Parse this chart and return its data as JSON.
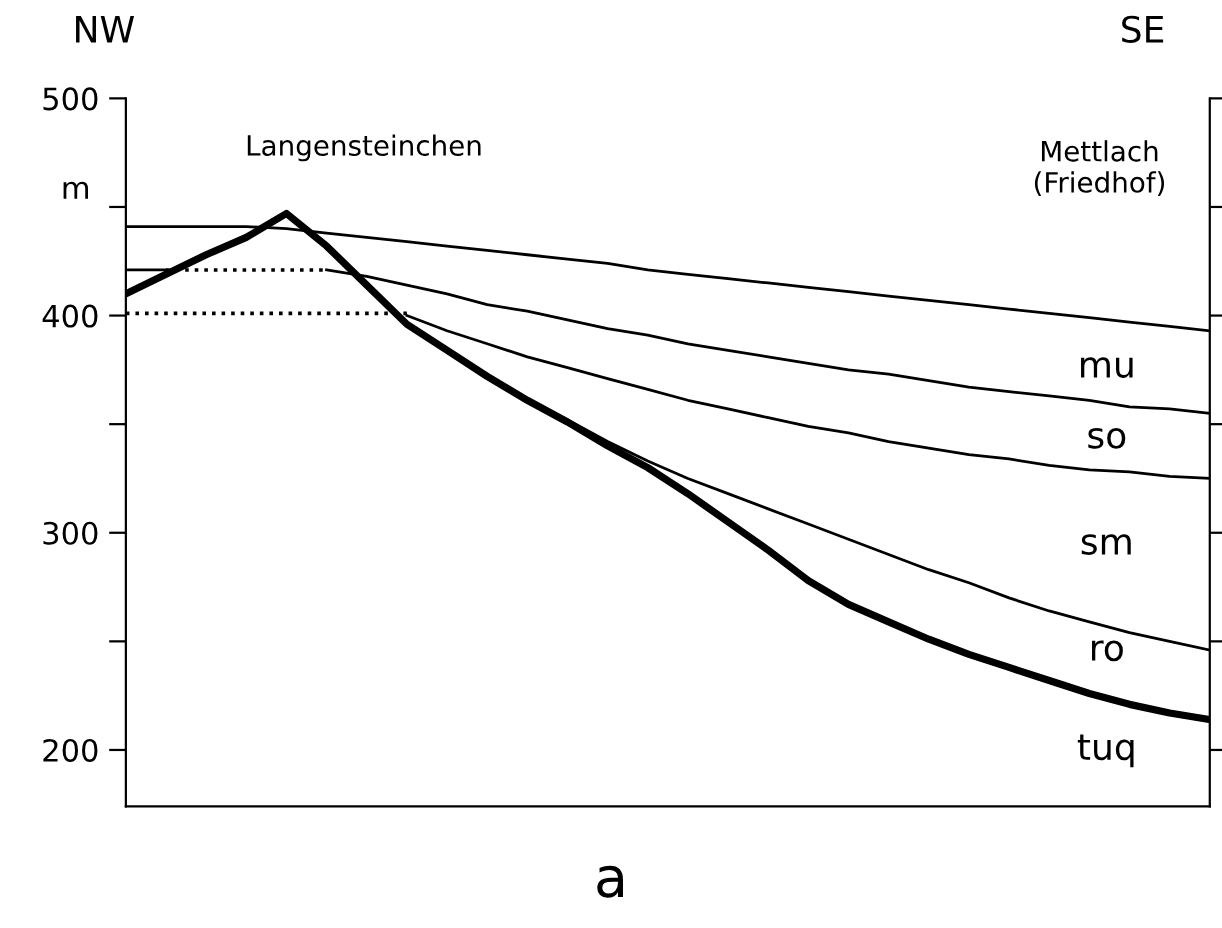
{
  "chart_data": {
    "type": "line",
    "categories": [
      null,
      null,
      null,
      null,
      null,
      null,
      null,
      null,
      null,
      null,
      null,
      null,
      null,
      null,
      null,
      null,
      null,
      null,
      null,
      null,
      null,
      null,
      null,
      null,
      null,
      null,
      null,
      null
    ],
    "ylabel": "m",
    "ylim": [
      174,
      500
    ],
    "yticks": [
      200,
      {
        "value": 250,
        "label": null
      },
      300,
      {
        "value": 350,
        "label": null
      },
      400,
      {
        "value": 450,
        "label": null
      },
      500
    ],
    "grid": false,
    "legend": false,
    "marker": "none",
    "series": [
      {
        "color": "#000000",
        "line_style": "solid",
        "values": [
          410,
          419,
          428,
          436,
          447,
          432,
          414,
          396,
          384,
          372,
          361,
          351,
          340,
          330,
          318,
          305,
          292,
          278,
          267,
          259,
          251,
          244,
          238,
          232,
          226,
          221,
          217,
          214
        ]
      },
      {
        "color": "#000000",
        "line_style": "solid",
        "values": [
          441,
          441,
          441,
          441,
          440,
          438,
          436,
          434,
          432,
          430,
          428,
          426,
          424,
          421,
          419,
          417,
          415,
          413,
          411,
          409,
          407,
          405,
          403,
          401,
          399,
          397,
          395,
          393
        ]
      },
      {
        "color": "#000000",
        "line_style": "solid",
        "values": [
          421,
          421,
          null,
          null,
          null,
          null,
          null,
          null,
          null,
          null,
          null,
          null,
          null,
          null,
          null,
          null,
          null,
          null,
          null,
          null,
          null,
          null,
          null,
          null,
          null,
          null,
          null,
          null
        ]
      },
      {
        "color": "#000000",
        "line_style": "solid",
        "values": [
          null,
          null,
          null,
          null,
          null,
          421,
          418,
          414,
          410,
          405,
          402,
          398,
          394,
          391,
          387,
          384,
          381,
          378,
          375,
          373,
          370,
          367,
          365,
          363,
          361,
          358,
          357,
          355
        ]
      },
      {
        "color": "#000000",
        "line_style": "solid",
        "values": [
          null,
          null,
          null,
          null,
          null,
          null,
          null,
          400,
          393,
          387,
          381,
          376,
          371,
          366,
          361,
          357,
          353,
          349,
          346,
          342,
          339,
          336,
          334,
          331,
          329,
          328,
          326,
          325
        ]
      },
      {
        "color": "#000000",
        "line_style": "solid",
        "values": [
          null,
          null,
          null,
          null,
          null,
          null,
          null,
          396,
          384,
          372,
          361,
          352,
          342,
          333,
          325,
          318,
          311,
          304,
          297,
          290,
          283,
          277,
          270,
          264,
          259,
          254,
          250,
          246
        ]
      },
      {
        "color": "#000000",
        "line_style": "dotted",
        "values": [
          null,
          421,
          421,
          421,
          421,
          421,
          null,
          null,
          null,
          null,
          null,
          null,
          null,
          null,
          null,
          null,
          null,
          null,
          null,
          null,
          null,
          null,
          null,
          null,
          null,
          null,
          null,
          null
        ]
      },
      {
        "color": "#000000",
        "line_style": "dotted",
        "values": [
          401,
          401,
          401,
          401,
          401,
          401,
          401,
          401,
          null,
          null,
          null,
          null,
          null,
          null,
          null,
          null,
          null,
          null,
          null,
          null,
          null,
          null,
          null,
          null,
          null,
          null,
          null,
          null
        ]
      }
    ],
    "annotations": [
      "NW",
      "SE",
      "Langensteinchen",
      "Mettlach\n(Friedhof)",
      "mu",
      "so",
      "sm",
      "ro",
      "tuq",
      "a"
    ]
  }
}
